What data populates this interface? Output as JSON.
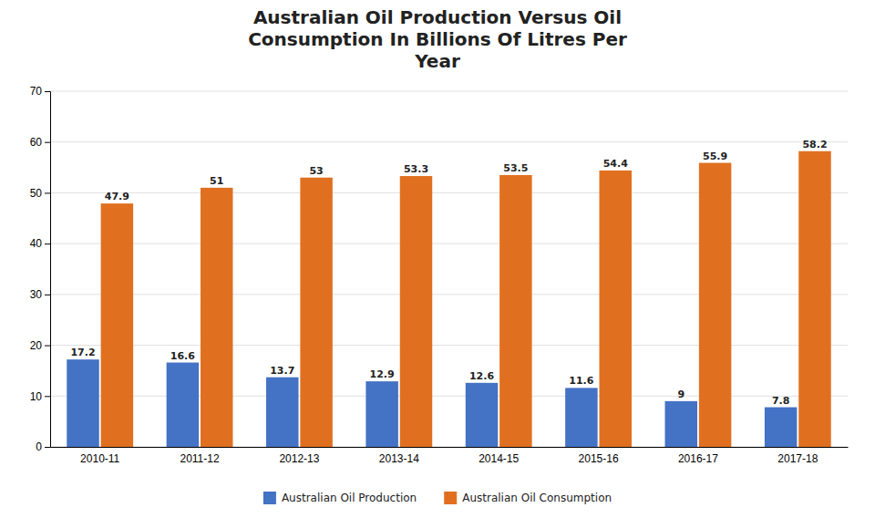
{
  "chart_data": {
    "type": "bar",
    "title": "Australian Oil Production Versus Oil\nConsumption In Billions Of Litres Per\nYear",
    "categories": [
      "2010-11",
      "2011-12",
      "2012-13",
      "2013-14",
      "2014-15",
      "2015-16",
      "2016-17",
      "2017-18"
    ],
    "series": [
      {
        "name": "Australian Oil Production",
        "color": "#4472C4",
        "values": [
          17.2,
          16.6,
          13.7,
          12.9,
          12.6,
          11.6,
          9,
          7.8
        ]
      },
      {
        "name": "Australian Oil Consumption",
        "color": "#E07020",
        "values": [
          47.9,
          51.0,
          53.0,
          53.3,
          53.5,
          54.4,
          55.9,
          58.2
        ]
      }
    ],
    "ylim": [
      0,
      70
    ],
    "yticks": [
      0,
      10,
      20,
      30,
      40,
      50,
      60,
      70
    ],
    "grid": true,
    "legend": "bottom",
    "data_labels": true
  }
}
